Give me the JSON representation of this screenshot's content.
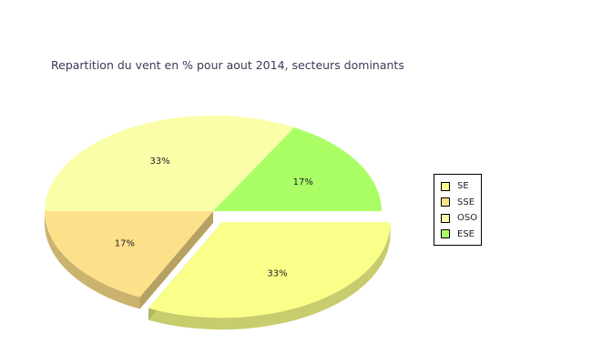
{
  "chart_data": {
    "type": "pie",
    "title": "Repartition du vent en % pour aout 2014, secteurs dominants",
    "slices": [
      {
        "name": "SE",
        "value": 33,
        "label": "33%",
        "color": "#f9ff88"
      },
      {
        "name": "SSE",
        "value": 17,
        "label": "17%",
        "color": "#fde08a"
      },
      {
        "name": "OSO",
        "value": 33,
        "label": "33%",
        "color": "#fafea8"
      },
      {
        "name": "ESE",
        "value": 17,
        "label": "17%",
        "color": "#aaff66"
      }
    ],
    "exploded": "SE",
    "three_d": true,
    "legend_position": "right"
  }
}
